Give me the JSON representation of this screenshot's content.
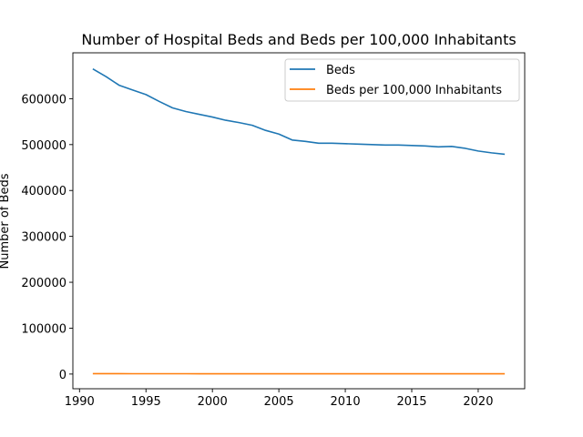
{
  "chart_data": {
    "type": "line",
    "title": "Number of Hospital Beds and Beds per 100,000 Inhabitants",
    "xlabel": "",
    "ylabel": "Number of Beds",
    "xlim": [
      1989.5,
      2023.5
    ],
    "ylim": [
      -32000,
      700000
    ],
    "xticks": [
      1990,
      1995,
      2000,
      2005,
      2010,
      2015,
      2020
    ],
    "yticks": [
      0,
      100000,
      200000,
      300000,
      400000,
      500000,
      600000
    ],
    "grid": false,
    "legend_position": "top-right",
    "x": [
      1991,
      1992,
      1993,
      1994,
      1995,
      1996,
      1997,
      1998,
      1999,
      2000,
      2001,
      2002,
      2003,
      2004,
      2005,
      2006,
      2007,
      2008,
      2009,
      2010,
      2011,
      2012,
      2013,
      2014,
      2015,
      2016,
      2017,
      2018,
      2019,
      2020,
      2021,
      2022
    ],
    "series": [
      {
        "name": "Beds",
        "color": "#1f77b4",
        "values": [
          665000,
          648000,
          629000,
          619000,
          609000,
          594000,
          580000,
          572000,
          566000,
          560000,
          553000,
          548000,
          542000,
          531000,
          523000,
          510000,
          507000,
          503000,
          503000,
          502000,
          501000,
          500000,
          499000,
          499000,
          498000,
          497000,
          495000,
          496000,
          492000,
          486000,
          482000,
          479000
        ]
      },
      {
        "name": "Beds per 100,000 Inhabitants",
        "color": "#ff7f0e",
        "values": [
          832,
          806,
          779,
          760,
          747,
          727,
          710,
          702,
          695,
          682,
          673,
          667,
          658,
          645,
          633,
          623,
          617,
          612,
          616,
          615,
          615,
          611,
          608,
          605,
          604,
          600,
          601,
          597,
          593,
          583,
          578,
          576
        ]
      }
    ]
  }
}
